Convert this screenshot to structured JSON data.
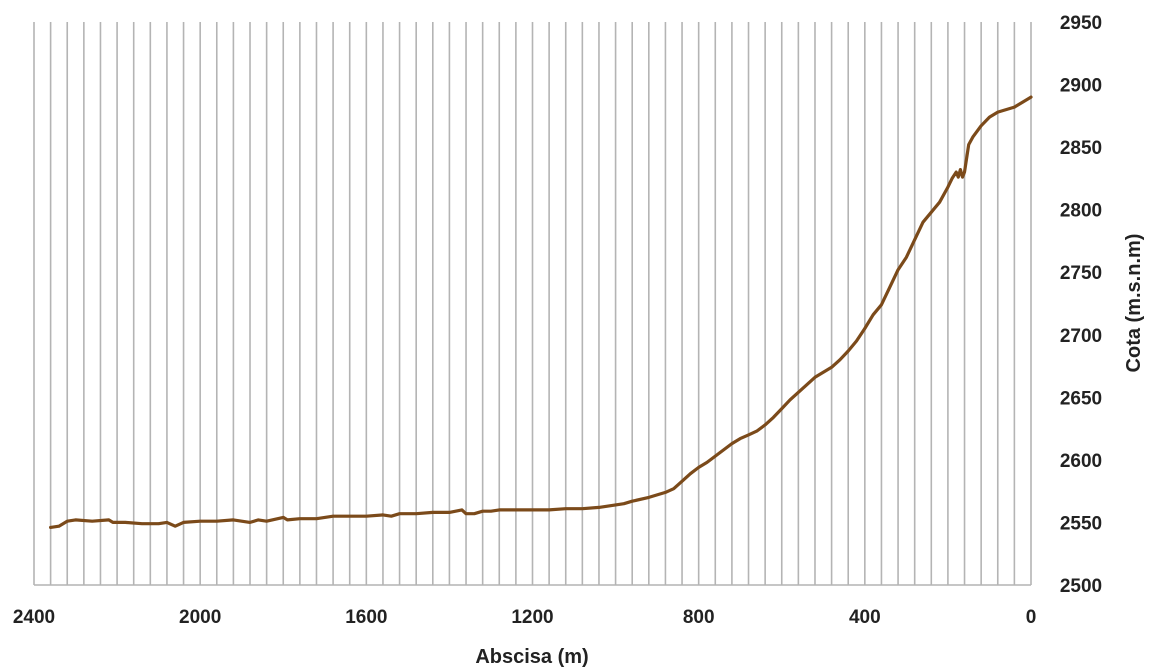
{
  "chart_data": {
    "type": "line",
    "title": "",
    "xlabel": "Abscisa (m)",
    "ylabel": "Cota (m.s.n.m)",
    "xlim": [
      2400,
      0
    ],
    "ylim": [
      2500,
      2950
    ],
    "x_reversed": true,
    "x_ticks": [
      2400,
      2000,
      1600,
      1200,
      800,
      400,
      0
    ],
    "x_tick_labels": [
      "2400",
      "2000",
      "1600",
      "1200",
      "800",
      "400",
      "0"
    ],
    "x_minor_grid_step": 40,
    "y_ticks": [
      2500,
      2550,
      2600,
      2650,
      2700,
      2750,
      2800,
      2850,
      2900,
      2950
    ],
    "y_tick_labels": [
      "2500",
      "2550",
      "2600",
      "2650",
      "2700",
      "2750",
      "2800",
      "2850",
      "2900",
      "2950"
    ],
    "y_axis_position": "right",
    "grid": "vertical",
    "legend": "none",
    "series": [
      {
        "color": "#7b4a1a",
        "x": [
          2360,
          2340,
          2320,
          2300,
          2260,
          2220,
          2210,
          2180,
          2140,
          2100,
          2080,
          2060,
          2040,
          2000,
          1960,
          1920,
          1880,
          1860,
          1840,
          1800,
          1790,
          1760,
          1720,
          1700,
          1680,
          1640,
          1600,
          1560,
          1540,
          1520,
          1480,
          1440,
          1400,
          1370,
          1360,
          1340,
          1320,
          1300,
          1280,
          1240,
          1200,
          1160,
          1120,
          1080,
          1040,
          1000,
          980,
          960,
          920,
          880,
          860,
          840,
          820,
          800,
          780,
          760,
          740,
          720,
          700,
          680,
          660,
          640,
          620,
          600,
          580,
          560,
          540,
          520,
          500,
          480,
          460,
          440,
          420,
          400,
          380,
          360,
          340,
          320,
          300,
          280,
          260,
          240,
          220,
          200,
          190,
          180,
          175,
          170,
          165,
          160,
          150,
          140,
          120,
          100,
          80,
          60,
          40,
          20,
          0
        ],
        "y": [
          2546,
          2547,
          2551,
          2552,
          2551,
          2552,
          2550,
          2550,
          2549,
          2549,
          2550,
          2547,
          2550,
          2551,
          2551,
          2552,
          2550,
          2552,
          2551,
          2554,
          2552,
          2553,
          2553,
          2554,
          2555,
          2555,
          2555,
          2556,
          2555,
          2557,
          2557,
          2558,
          2558,
          2560,
          2557,
          2557,
          2559,
          2559,
          2560,
          2560,
          2560,
          2560,
          2561,
          2561,
          2562,
          2564,
          2565,
          2567,
          2570,
          2574,
          2577,
          2583,
          2589,
          2594,
          2598,
          2603,
          2608,
          2613,
          2617,
          2620,
          2623,
          2628,
          2634,
          2641,
          2648,
          2654,
          2660,
          2666,
          2670,
          2674,
          2680,
          2687,
          2695,
          2705,
          2716,
          2724,
          2738,
          2752,
          2762,
          2776,
          2790,
          2798,
          2806,
          2818,
          2825,
          2830,
          2826,
          2832,
          2826,
          2830,
          2852,
          2858,
          2867,
          2874,
          2878,
          2880,
          2882,
          2886,
          2890
        ]
      }
    ]
  }
}
